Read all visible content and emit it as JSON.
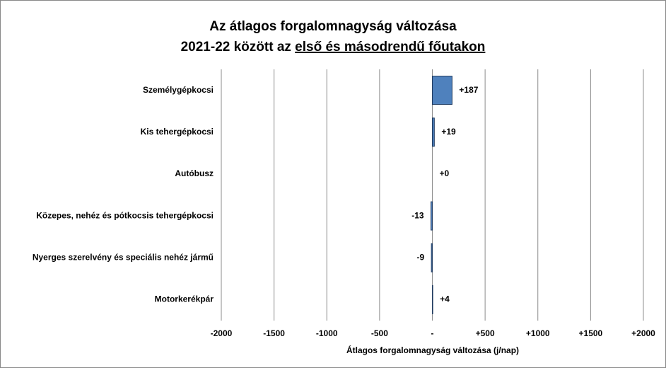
{
  "chart_data": {
    "type": "hbar",
    "title_line1": "Az átlagos forgalomnagyság változása",
    "title_line2_plain": "2021-22 között az",
    "title_line2_underlined": "első és másodrendű főutakon",
    "x_label": "Átlagos forgalomnagyság változása (j/nap)",
    "categories": [
      "Személygépkocsi",
      "Kis tehergépkocsi",
      "Autóbusz",
      "Közepes, nehéz és pótkocsis tehergépkocsi",
      "Nyerges szerelvény és speciális nehéz jármű",
      "Motorkerékpár"
    ],
    "values": [
      187,
      19,
      0,
      -13,
      -9,
      4
    ],
    "value_labels": [
      "+187",
      "+19",
      "+0",
      "-13",
      "-9",
      "+4"
    ],
    "color": "#4f81bd",
    "negative_color": "#ff0000",
    "xlim": [
      -2000,
      2000
    ],
    "xticks": [
      -2000,
      -1500,
      -1000,
      -500,
      {
        "value": 0,
        "label": "-"
      },
      {
        "value": 500,
        "label": "+500"
      },
      {
        "value": 1000,
        "label": "+1000"
      },
      {
        "value": 1500,
        "label": "+1500"
      },
      {
        "value": 2000,
        "label": "+2000"
      }
    ],
    "grid": true
  }
}
